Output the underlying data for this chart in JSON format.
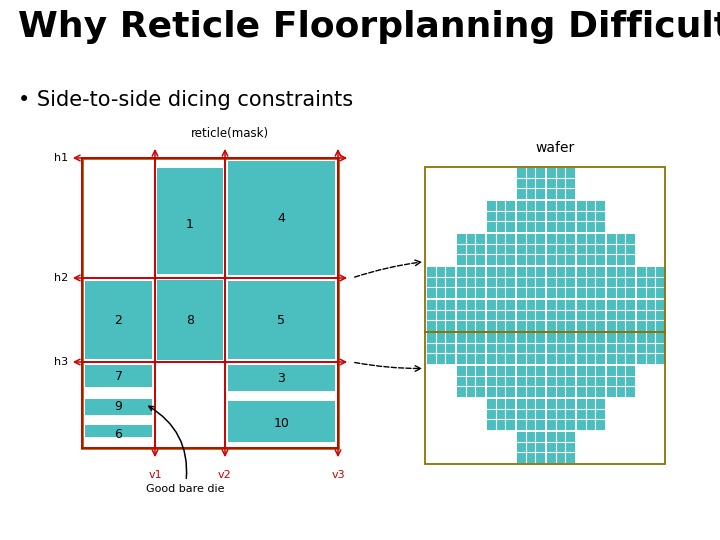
{
  "title": "Why Reticle Floorplanning Difficult?",
  "bullet": "Side-to-side dicing constraints",
  "bg_color": "#ffffff",
  "teal": "#4BBFBF",
  "olive": "#8B7300",
  "reticle_label": "reticle(mask)",
  "wafer_label": "wafer",
  "good_bare_die_label": "Good bare die",
  "h_labels": [
    "h1",
    "h2",
    "h3"
  ],
  "v_labels": [
    "v1",
    "v2",
    "v3"
  ],
  "wafer_row_counts": [
    2,
    4,
    6,
    8,
    8,
    8,
    6,
    4,
    2
  ]
}
